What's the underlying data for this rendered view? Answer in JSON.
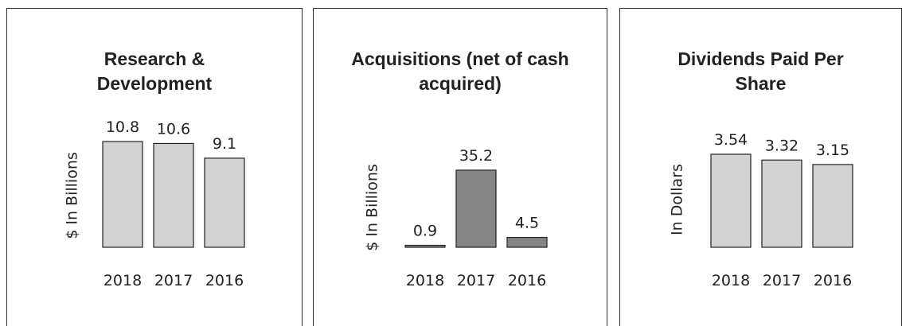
{
  "chart_data": [
    {
      "type": "bar",
      "title": "Research & Development",
      "y_label": "$ In Billions",
      "categories": [
        "2018",
        "2017",
        "2016"
      ],
      "values": [
        10.8,
        10.6,
        9.1
      ],
      "color": "#d3d3d3"
    },
    {
      "type": "bar",
      "title": "Acquisitions (net of cash acquired)",
      "y_label": "$ In Billions",
      "categories": [
        "2018",
        "2017",
        "2016"
      ],
      "values": [
        0.9,
        35.2,
        4.5
      ],
      "color": "#858585"
    },
    {
      "type": "bar",
      "title": "Dividends Paid Per Share",
      "y_label": "In Dollars",
      "categories": [
        "2018",
        "2017",
        "2016"
      ],
      "values": [
        3.54,
        3.32,
        3.15
      ],
      "color": "#d3d3d3"
    }
  ]
}
